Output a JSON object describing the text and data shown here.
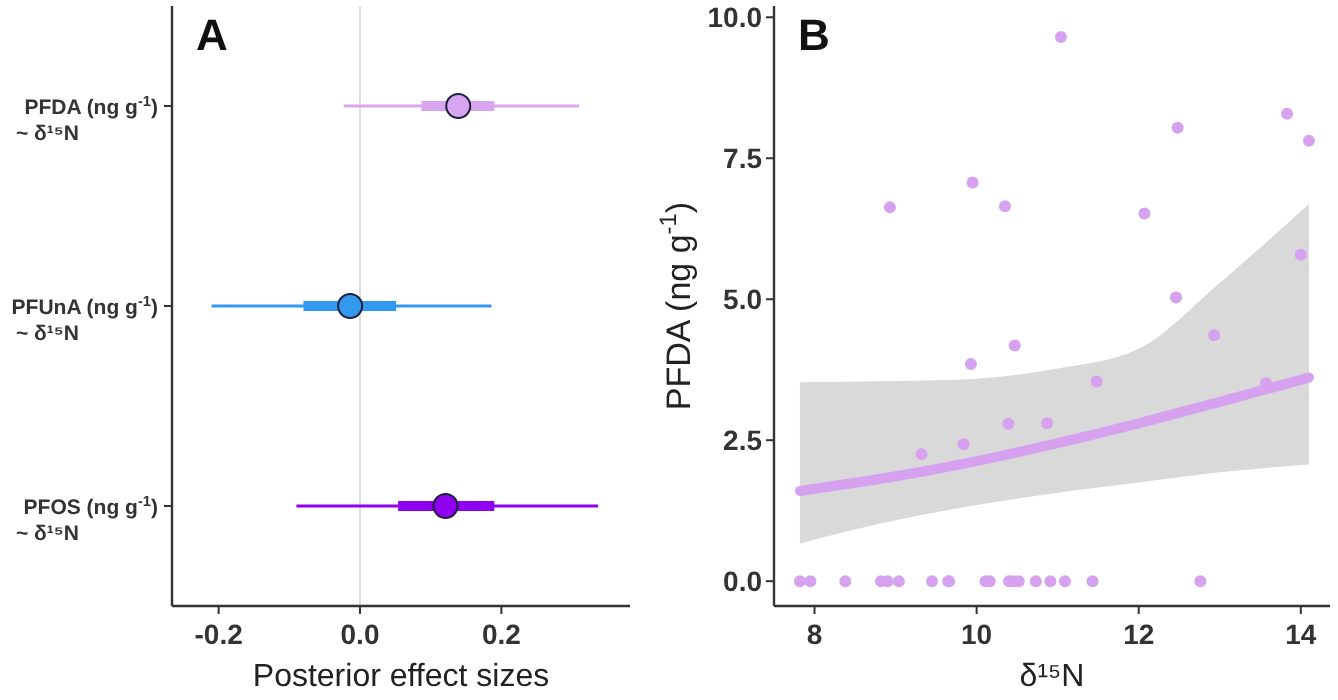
{
  "chart_data": [
    {
      "type": "box",
      "orientation": "horizontal",
      "title": "A",
      "xlabel": "Posterior effect sizes",
      "categories": [
        "PFDA (ng g$^{-1}$)\n~ δ¹⁵N",
        "PFUnA (ng g$^{-1}$)\n~ δ¹⁵N",
        "PFOS (ng g$^{-1}$)\n~ δ¹⁵N"
      ],
      "boxes": [
        {
          "low": -0.023,
          "q1": 0.087,
          "median": 0.139,
          "q3": 0.19,
          "high": 0.31
        },
        {
          "low": -0.21,
          "q1": -0.08,
          "median": -0.014,
          "q3": 0.051,
          "high": 0.186
        },
        {
          "low": -0.09,
          "q1": 0.054,
          "median": 0.121,
          "q3": 0.19,
          "high": 0.337
        }
      ],
      "colors": [
        "#d8a5f0",
        "#3399ee",
        "#8f00f0"
      ],
      "xlim": [
        -0.266,
        0.382
      ],
      "xticks": [
        {
          "value": -0.2,
          "label": "-0.2"
        },
        {
          "value": 0,
          "label": "0.0"
        },
        {
          "value": 0.2,
          "label": "0.2"
        }
      ],
      "ref_lines": [
        {
          "axis": "x",
          "value": 0,
          "color": "#dddddd"
        }
      ]
    },
    {
      "type": "scatter",
      "title": "B",
      "xlabel": "δ¹⁵N",
      "ylabel": "PFDA (ng g$^{-1}$)",
      "xlim": [
        7.5,
        14.36
      ],
      "xticks": [
        8,
        10,
        12,
        14
      ],
      "ylim": [
        -0.44,
        10.2
      ],
      "yticks": [
        {
          "value": 0,
          "label": "0.0"
        },
        {
          "value": 2.5,
          "label": "2.5"
        },
        {
          "value": 5,
          "label": "5.0"
        },
        {
          "value": 7.5,
          "label": "7.5"
        },
        {
          "value": 10,
          "label": "10.0"
        }
      ],
      "series": [
        {
          "type": "line",
          "color": "#d6a2f0",
          "x": [
            7.82,
            9,
            10,
            11,
            12,
            13,
            14.1
          ],
          "values": [
            1.6,
            1.86,
            2.13,
            2.45,
            2.8,
            3.18,
            3.61
          ],
          "lower": [
            0.67,
            1.08,
            1.35,
            1.57,
            1.75,
            1.93,
            2.07
          ],
          "upper": [
            3.53,
            3.55,
            3.59,
            3.77,
            4.12,
            5.29,
            6.69
          ]
        },
        {
          "type": "scatter",
          "color": "#d6a2f0",
          "x": [
            8.93,
            9.95,
            10.35,
            11.04,
            12.48,
            12.07,
            13.83,
            14.1,
            14.0,
            12.46,
            12.93,
            10.47,
            9.93,
            11.48,
            13.57,
            10.39,
            10.87,
            9.84,
            9.32,
            7.82,
            7.95,
            8.38,
            8.82,
            8.9,
            9.04,
            9.45,
            9.65,
            9.66,
            10.11,
            10.16,
            10.4,
            10.45,
            10.52,
            10.73,
            10.91,
            11.09,
            11.43,
            12.76
          ],
          "values": [
            6.63,
            7.07,
            6.65,
            9.65,
            8.04,
            6.52,
            8.29,
            7.81,
            5.79,
            5.03,
            4.36,
            4.18,
            3.85,
            3.54,
            3.51,
            2.79,
            2.8,
            2.43,
            2.25,
            0,
            0,
            0,
            0,
            0,
            0,
            0,
            0,
            0,
            0,
            0,
            0,
            0,
            0,
            0,
            0,
            0,
            0,
            0
          ]
        }
      ]
    }
  ]
}
